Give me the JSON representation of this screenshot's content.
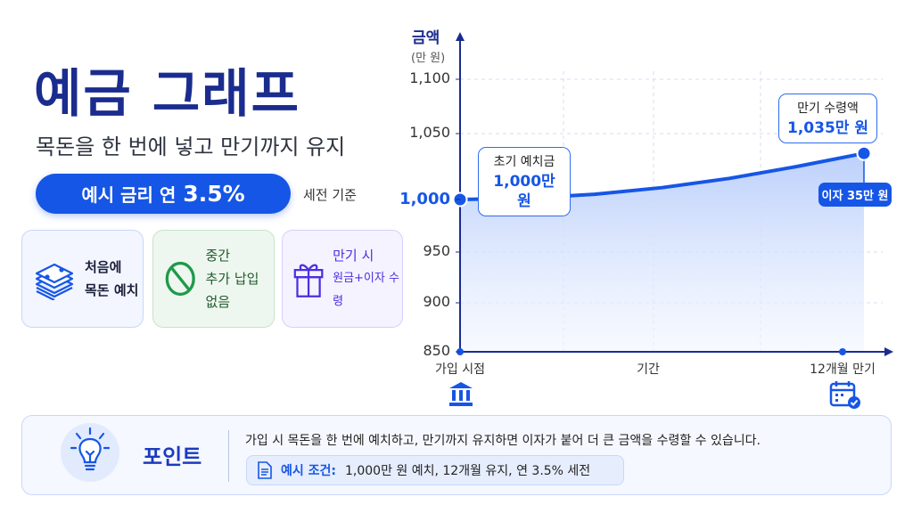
{
  "header": {
    "title": "예금 그래프",
    "subtitle": "목돈을 한 번에 넣고 만기까지 유지",
    "rate_prefix": "예시 금리 연",
    "rate_value": "3.5%",
    "rate_basis": "세전 기준"
  },
  "cards": [
    {
      "icon": "money-stack-icon",
      "line1": "처음에",
      "line2": "목돈 예치",
      "color": "#1656e6"
    },
    {
      "icon": "prohibited-icon",
      "line1": "중간",
      "line2": "추가 납입 없음",
      "color": "#1e9a4a"
    },
    {
      "icon": "gift-icon",
      "line1": "만기 시",
      "line2": "원금+이자 수령",
      "color": "#4b2fe0"
    }
  ],
  "chart_data": {
    "type": "area",
    "ylabel": "금액",
    "yunit": "(만 원)",
    "y_ticks": [
      850,
      900,
      950,
      1000,
      1050,
      1100
    ],
    "y_tick_labels": [
      "850",
      "900",
      "950",
      "1,000",
      "1,050",
      "1,100"
    ],
    "ylim": [
      850,
      1100
    ],
    "xlabel": "기간",
    "x_tick_labels": [
      "가입 시점",
      "12개월 만기"
    ],
    "x_unit": "months",
    "grid": true,
    "series": [
      {
        "x": [
          0,
          2,
          4,
          6,
          8,
          10,
          12
        ],
        "values": [
          1000,
          1001,
          1004,
          1009,
          1016,
          1025,
          1035
        ]
      }
    ],
    "annotations": {
      "start_title": "초기 예치금",
      "start_value": "1,000만 원",
      "end_title": "만기 수령액",
      "end_value": "1,035만 원",
      "interest": "이자 35만 원"
    },
    "color": "#1656e6"
  },
  "point": {
    "title": "포인트",
    "text": "가입 시 목돈을 한 번에 예치하고, 만기까지 유지하면 이자가 붙어 더 큰 금액을 수령할 수 있습니다.",
    "condition_label": "예시 조건:",
    "condition_text": "1,000만 원 예치, 12개월 유지, 연 3.5% 세전"
  }
}
